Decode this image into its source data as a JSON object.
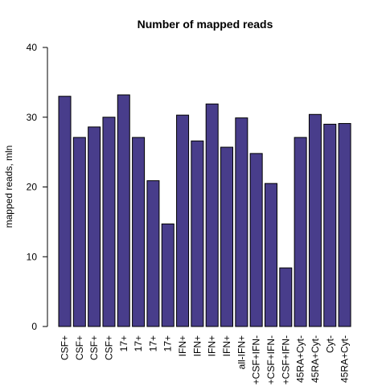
{
  "chart_data": {
    "type": "bar",
    "title": "Number of mapped reads",
    "xlabel": "",
    "ylabel": "mapped reads, mln",
    "ylim": [
      0,
      40
    ],
    "yticks": [
      0,
      10,
      20,
      30,
      40
    ],
    "grid": false,
    "bar_color": "#483D8B",
    "categories": [
      "CSF+",
      "CSF+",
      "CSF+",
      "CSF+",
      "17+",
      "17+",
      "17+",
      "17+",
      "IFN+",
      "IFN+",
      "IFN+",
      "IFN+",
      "all-IFN+",
      "+CSF+IFN-",
      "+CSF+IFN-",
      "+CSF+IFN-",
      "45RA+Cyt-",
      "45RA+Cyt-",
      "Cyt-",
      "45RA+Cyt-"
    ],
    "values": [
      33.0,
      27.1,
      28.6,
      30.0,
      33.2,
      27.1,
      20.9,
      14.7,
      30.3,
      26.6,
      31.9,
      25.7,
      29.9,
      24.8,
      20.5,
      8.4,
      27.1,
      30.4,
      29.0,
      29.1
    ]
  }
}
